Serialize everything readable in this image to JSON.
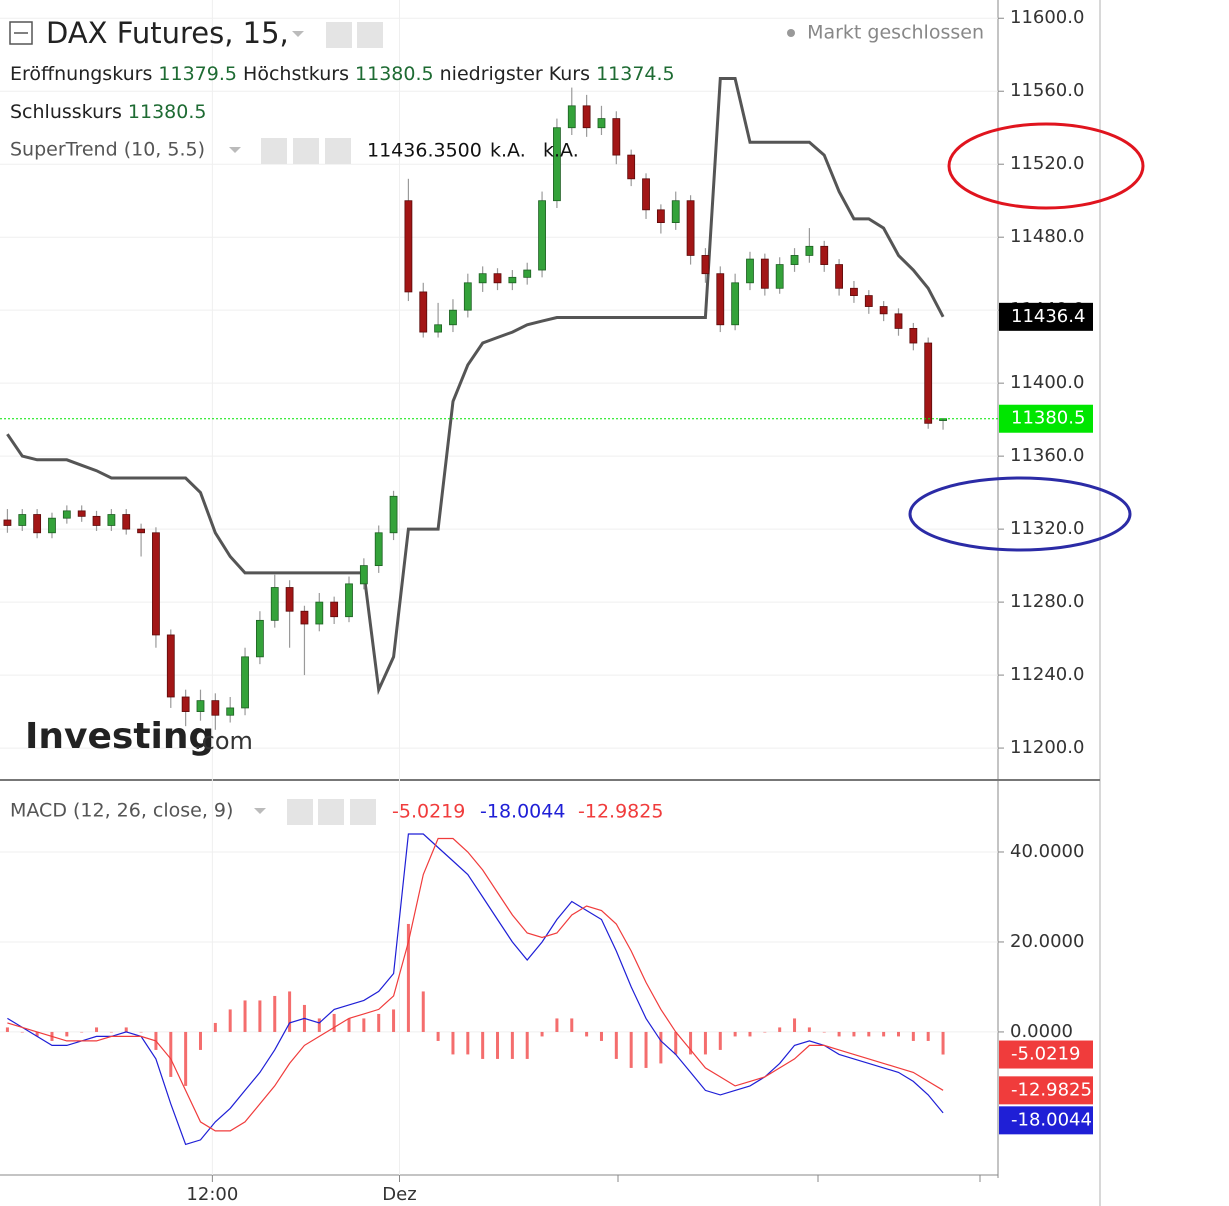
{
  "header": {
    "title": "DAX Futures, 15,",
    "open_label": "Eröffnungskurs",
    "high_label": "Höchstkurs",
    "low_label": "niedrigster Kurs",
    "close_label": "Schlusskurs",
    "status": "Markt geschlossen",
    "watermark": "Investing",
    "watermark_suffix": ".com"
  },
  "chart_data": [
    {
      "type": "candlestick",
      "up_color": "#34a23a",
      "down_color": "#a21616",
      "last_color": "#00e600",
      "xlim": [
        -0.5,
        66.7
      ],
      "xticks": [
        {
          "value": 13.8,
          "label": "12:00"
        },
        {
          "value": 26.4,
          "label": "Dez"
        }
      ],
      "ylim": [
        11182.5,
        11610
      ],
      "yticks": [
        {
          "value": 11200,
          "label": "11200.0"
        },
        {
          "value": 11240,
          "label": "11240.0"
        },
        {
          "value": 11280,
          "label": "11280.0"
        },
        {
          "value": 11320,
          "label": "11320.0"
        },
        {
          "value": 11360,
          "label": "11360.0"
        },
        {
          "value": 11400,
          "label": "11400.0"
        },
        {
          "value": 11440,
          "label": "11440.0"
        },
        {
          "value": 11480,
          "label": "11480.0"
        },
        {
          "value": 11520,
          "label": "11520.0"
        },
        {
          "value": 11560,
          "label": "11560.0"
        },
        {
          "value": 11600,
          "label": "11600.0"
        }
      ],
      "grid": true,
      "ohlc": [
        [
          11325,
          11331,
          11318,
          11322
        ],
        [
          11322,
          11331,
          11319,
          11328
        ],
        [
          11328,
          11331,
          11315,
          11318
        ],
        [
          11318,
          11329,
          11315,
          11326
        ],
        [
          11326,
          11333,
          11323,
          11330
        ],
        [
          11330,
          11333,
          11324,
          11327
        ],
        [
          11327,
          11330,
          11319,
          11322
        ],
        [
          11322,
          11331,
          11319,
          11328
        ],
        [
          11328,
          11331,
          11317,
          11320
        ],
        [
          11320,
          11323,
          11305,
          11318
        ],
        [
          11318,
          11321,
          11255,
          11262
        ],
        [
          11262,
          11265,
          11222,
          11228
        ],
        [
          11228,
          11232,
          11212,
          11220
        ],
        [
          11220,
          11232,
          11215,
          11226
        ],
        [
          11226,
          11230,
          11210,
          11218
        ],
        [
          11218,
          11228,
          11214,
          11222
        ],
        [
          11222,
          11255,
          11218,
          11250
        ],
        [
          11250,
          11275,
          11246,
          11270
        ],
        [
          11270,
          11295,
          11266,
          11288
        ],
        [
          11288,
          11292,
          11255,
          11275
        ],
        [
          11275,
          11278,
          11240,
          11268
        ],
        [
          11268,
          11285,
          11264,
          11280
        ],
        [
          11280,
          11283,
          11268,
          11272
        ],
        [
          11272,
          11294,
          11269,
          11290
        ],
        [
          11290,
          11304,
          11287,
          11300
        ],
        [
          11300,
          11322,
          11296,
          11318
        ],
        [
          11318,
          11341,
          11314,
          11338
        ],
        [
          11500,
          11512,
          11445,
          11450
        ],
        [
          11450,
          11455,
          11425,
          11428
        ],
        [
          11428,
          11444,
          11425,
          11432
        ],
        [
          11432,
          11446,
          11428,
          11440
        ],
        [
          11440,
          11460,
          11436,
          11455
        ],
        [
          11455,
          11464,
          11450,
          11460
        ],
        [
          11460,
          11463,
          11451,
          11455
        ],
        [
          11455,
          11462,
          11451,
          11458
        ],
        [
          11458,
          11466,
          11454,
          11462
        ],
        [
          11462,
          11505,
          11458,
          11500
        ],
        [
          11500,
          11545,
          11496,
          11540
        ],
        [
          11540,
          11562,
          11536,
          11552
        ],
        [
          11552,
          11558,
          11535,
          11540
        ],
        [
          11540,
          11552,
          11536,
          11545
        ],
        [
          11545,
          11549,
          11520,
          11525
        ],
        [
          11525,
          11528,
          11508,
          11512
        ],
        [
          11512,
          11515,
          11490,
          11495
        ],
        [
          11495,
          11498,
          11482,
          11488
        ],
        [
          11488,
          11505,
          11484,
          11500
        ],
        [
          11500,
          11503,
          11465,
          11470
        ],
        [
          11470,
          11474,
          11455,
          11460
        ],
        [
          11460,
          11464,
          11428,
          11432
        ],
        [
          11432,
          11460,
          11429,
          11455
        ],
        [
          11455,
          11472,
          11451,
          11468
        ],
        [
          11468,
          11471,
          11448,
          11452
        ],
        [
          11452,
          11469,
          11449,
          11465
        ],
        [
          11465,
          11474,
          11461,
          11470
        ],
        [
          11470,
          11485,
          11466,
          11475
        ],
        [
          11475,
          11478,
          11461,
          11465
        ],
        [
          11465,
          11468,
          11448,
          11452
        ],
        [
          11452,
          11456,
          11444,
          11448
        ],
        [
          11448,
          11451,
          11438,
          11442
        ],
        [
          11442,
          11445,
          11434,
          11438
        ],
        [
          11438,
          11441,
          11426,
          11430
        ],
        [
          11430,
          11433,
          11418,
          11422
        ],
        [
          11422,
          11425,
          11375,
          11378
        ],
        [
          11379.5,
          11380.5,
          11374.5,
          11380.5
        ]
      ],
      "series": [
        {
          "name": "SuperTrend (10, 5.5)",
          "color": "#555555",
          "value_label": "11436.3500",
          "axis_label": "11436.4",
          "na_labels": [
            "k.A.",
            "k.A."
          ],
          "values": [
            11372,
            11360,
            11358,
            11358,
            11358,
            11355,
            11352,
            11348,
            11348,
            11348,
            11348,
            11348,
            11348,
            11340,
            11318,
            11305,
            11296,
            11296,
            11296,
            11296,
            11296,
            11296,
            11296,
            11296,
            11296,
            11232,
            11250,
            11320,
            11320,
            11320,
            11390,
            11410,
            11422,
            11425,
            11428,
            11432,
            11434,
            11436,
            11436,
            11436,
            11436,
            11436,
            11436,
            11436,
            11436,
            11436,
            11436,
            11436,
            11567,
            11567,
            11532,
            11532,
            11532,
            11532,
            11532,
            11525,
            11505,
            11490,
            11490,
            11485,
            11470,
            11462,
            11452,
            11436.35
          ]
        }
      ]
    },
    {
      "type": "macd",
      "title": "MACD (12, 26, close, 9)",
      "ylim": [
        -31.8,
        56
      ],
      "yticks": [
        {
          "value": 0,
          "label": "0.0000"
        },
        {
          "value": 20,
          "label": "20.0000"
        },
        {
          "value": 40,
          "label": "40.0000"
        }
      ],
      "series": [
        {
          "style": "line",
          "color": "#1f1fd6",
          "values": [
            3,
            1,
            -1,
            -3,
            -3,
            -2,
            -1,
            -1,
            0,
            -1,
            -6,
            -16,
            -25,
            -24,
            -20,
            -17,
            -13,
            -9,
            -4,
            2,
            3,
            2,
            5,
            6,
            7,
            9,
            13,
            44,
            44,
            41,
            38,
            35,
            30,
            25,
            20,
            16,
            20,
            25,
            29,
            27,
            25,
            18,
            10,
            3,
            -2,
            -5,
            -9,
            -13,
            -14,
            -13,
            -12,
            -10,
            -7,
            -3,
            -2,
            -3,
            -5,
            -6,
            -7,
            -8,
            -9,
            -11,
            -14,
            -18.0044
          ]
        },
        {
          "style": "line",
          "color": "#f03c3c",
          "values": [
            2,
            1,
            0,
            -1,
            -2,
            -2,
            -2,
            -1,
            -1,
            -1,
            -2,
            -6,
            -13,
            -20,
            -22,
            -22,
            -20,
            -16,
            -12,
            -7,
            -3,
            -1,
            1,
            3,
            4,
            5,
            8,
            20,
            35,
            43,
            43,
            40,
            36,
            31,
            26,
            22,
            21,
            22,
            26,
            28,
            27,
            24,
            18,
            11,
            5,
            0,
            -4,
            -8,
            -10,
            -12,
            -11,
            -10,
            -8,
            -6,
            -3,
            -3,
            -4,
            -5,
            -6,
            -7,
            -8,
            -9,
            -11,
            -12.9825
          ]
        },
        {
          "style": "bar",
          "color": "#f03c3c",
          "values": [
            1,
            0,
            -1,
            -2,
            -1,
            0,
            1,
            0,
            1,
            0,
            -4,
            -10,
            -12,
            -4,
            2,
            5,
            7,
            7,
            8,
            9,
            6,
            3,
            4,
            3,
            3,
            4,
            5,
            24,
            9,
            -2,
            -5,
            -5,
            -6,
            -6,
            -6,
            -6,
            -1,
            3,
            3,
            -1,
            -2,
            -6,
            -8,
            -8,
            -7,
            -5,
            -5,
            -5,
            -4,
            -1,
            -1,
            0,
            1,
            3,
            1,
            0,
            -1,
            -1,
            -1,
            -1,
            -1,
            -2,
            -2,
            -5.0219
          ]
        }
      ]
    }
  ]
}
